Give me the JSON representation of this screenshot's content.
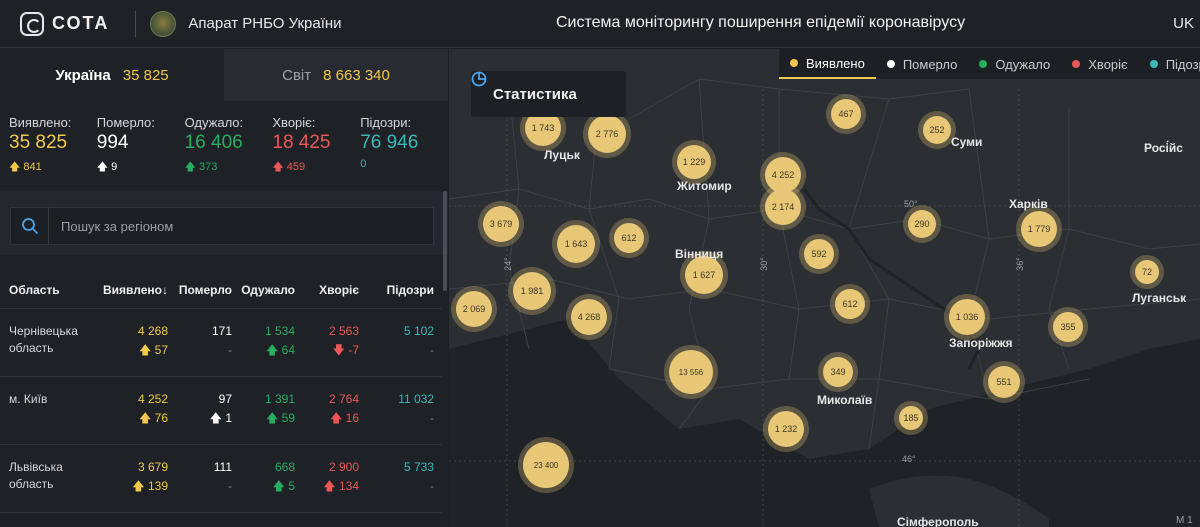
{
  "header": {
    "logo_text": "СОТА",
    "org_name": "Апарат РНБО України",
    "system_title": "Система моніторингу поширення епідемії коронавірусу",
    "lang": "UK"
  },
  "scope_tabs": [
    {
      "label": "Україна",
      "value": "35 825"
    },
    {
      "label": "Світ",
      "value": "8 663 340"
    }
  ],
  "stats": [
    {
      "label": "Виявлено:",
      "value": "35 825",
      "delta": "841",
      "color": "yellow"
    },
    {
      "label": "Померло:",
      "value": "994",
      "delta": "9",
      "color": "white"
    },
    {
      "label": "Одужало:",
      "value": "16 406",
      "delta": "373",
      "color": "green"
    },
    {
      "label": "Хворіє:",
      "value": "18 425",
      "delta": "459",
      "color": "red"
    },
    {
      "label": "Підозри:",
      "value": "76 946",
      "delta": "0",
      "color": "teal"
    }
  ],
  "search": {
    "placeholder": "Пошук за регіоном"
  },
  "table": {
    "headers": {
      "region": "Область",
      "detected": "Виявлено",
      "dead": "Померло",
      "recovered": "Одужало",
      "sick": "Хворіє",
      "suspected": "Підозри"
    },
    "rows": [
      {
        "region": "Чернівецька область",
        "detected": "4 268",
        "detected_delta": "57",
        "dead": "171",
        "dead_delta": "-",
        "recovered": "1 534",
        "recovered_delta": "64",
        "sick": "2 563",
        "sick_delta": "-7",
        "suspected": "5 102",
        "suspected_delta": "-"
      },
      {
        "region": "м. Київ",
        "detected": "4 252",
        "detected_delta": "76",
        "dead": "97",
        "dead_delta": "1",
        "recovered": "1 391",
        "recovered_delta": "59",
        "sick": "2 764",
        "sick_delta": "16",
        "suspected": "11 032",
        "suspected_delta": "-"
      },
      {
        "region": "Львівська область",
        "detected": "3 679",
        "detected_delta": "139",
        "dead": "111",
        "dead_delta": "-",
        "recovered": "668",
        "recovered_delta": "5",
        "sick": "2 900",
        "sick_delta": "134",
        "suspected": "5 733",
        "suspected_delta": "-"
      }
    ]
  },
  "map": {
    "stat_button": "Статистика",
    "legend": [
      {
        "label": "Виявлено",
        "color": "#f2c94c",
        "active": true
      },
      {
        "label": "Померло",
        "color": "#ffffff",
        "active": false
      },
      {
        "label": "Одужало",
        "color": "#27ae60",
        "active": false
      },
      {
        "label": "Хворіє",
        "color": "#eb5757",
        "active": false
      },
      {
        "label": "Підозри",
        "color": "#3bb9b9",
        "active": false
      }
    ],
    "bubbles": [
      "1 743",
      "2 776",
      "467",
      "252",
      "1 229",
      "4 252",
      "2 174",
      "3 679",
      "1 643",
      "612",
      "290",
      "1 779",
      "592",
      "1 627",
      "72",
      "2 069",
      "1 981",
      "4 268",
      "612",
      "1 036",
      "355",
      "13 556",
      "349",
      "551",
      "185",
      "1 232",
      "23 400"
    ],
    "cities": [
      "Луцьк",
      "Суми",
      "Житомир",
      "Росі́йс",
      "Харків",
      "Вінниця",
      "Луганськ",
      "Запоріжжя",
      "Миколаїв",
      "Сімферополь"
    ],
    "grid_labels": [
      "50°",
      "24°",
      "30°",
      "36°",
      "46°"
    ],
    "scale": "М 1"
  }
}
